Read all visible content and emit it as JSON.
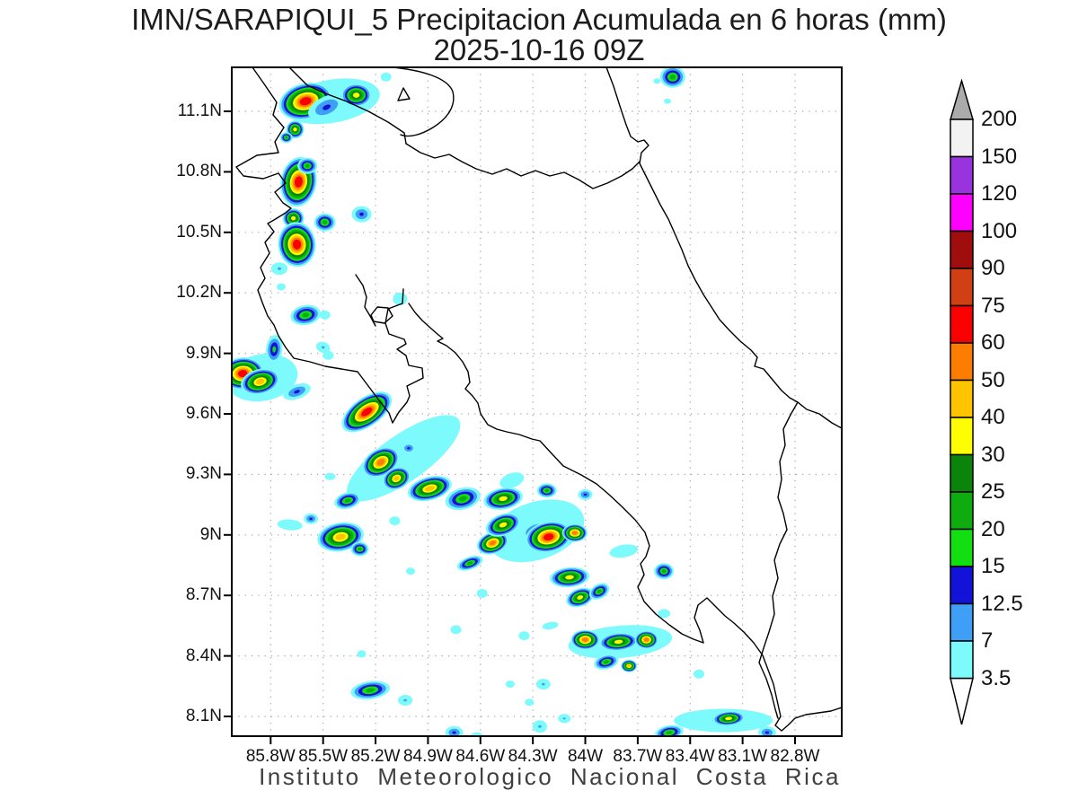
{
  "title": {
    "line1": "IMN/SARAPIQUI_5 Precipitacion Acumulada en 6 horas (mm)",
    "line2": "2025-10-16 09Z"
  },
  "footer": "Instituto Meteorologico Nacional Costa Rica",
  "chart_data": {
    "type": "heatmap",
    "title": "IMN/SARAPIQUI_5 Precipitacion Acumulada en 6 horas (mm)",
    "subtitle": "2025-10-16 09Z",
    "xlabel": "",
    "ylabel": "",
    "units": "mm",
    "grid": true,
    "legend_position": "right",
    "xlim": [
      -86.02,
      -82.53
    ],
    "ylim": [
      7.99,
      11.32
    ],
    "x_tick_labels": [
      "85.8W",
      "85.5W",
      "85.2W",
      "84.9W",
      "84.6W",
      "84.3W",
      "84W",
      "83.7W",
      "83.4W",
      "83.1W",
      "82.8W"
    ],
    "x_tick_lons": [
      -85.8,
      -85.5,
      -85.2,
      -84.9,
      -84.6,
      -84.3,
      -84.0,
      -83.7,
      -83.4,
      -83.1,
      -82.8
    ],
    "y_tick_labels": [
      "11.1N",
      "10.8N",
      "10.5N",
      "10.2N",
      "9.9N",
      "9.6N",
      "9.3N",
      "9N",
      "8.7N",
      "8.4N",
      "8.1N"
    ],
    "y_tick_lats": [
      11.1,
      10.8,
      10.5,
      10.2,
      9.9,
      9.6,
      9.3,
      9.0,
      8.7,
      8.4,
      8.1
    ],
    "colorbar": {
      "thresholds": [
        3.5,
        7,
        12.5,
        15,
        20,
        25,
        30,
        40,
        50,
        60,
        75,
        90,
        100,
        120,
        150,
        200
      ],
      "labels_top_to_bottom": [
        "200",
        "150",
        "120",
        "100",
        "90",
        "75",
        "60",
        "50",
        "40",
        "30",
        "25",
        "20",
        "15",
        "12.5",
        "7",
        "3.5"
      ],
      "colors_bottom_to_top": [
        "#7CFAFC",
        "#3F9EF5",
        "#1212D9",
        "#12DF12",
        "#0FAC0F",
        "#0A840A",
        "#FEFE00",
        "#FFC400",
        "#FD7D00",
        "#FB0000",
        "#D04012",
        "#A00D0D",
        "#FE01FE",
        "#9933DD",
        "#F2F2F2"
      ],
      "over_color": "#ABABAB",
      "under_color": "#FFFFFF"
    },
    "cell_levels_mm": [
      3.5,
      7,
      12.5,
      15,
      20,
      25,
      30,
      40,
      50,
      60
    ],
    "cells_format": [
      "lon",
      "lat",
      "peak_mm",
      "rx_px",
      "ry_px",
      "rot_deg"
    ],
    "cells": [
      [
        -85.45,
        11.15,
        7,
        54,
        24,
        -10
      ],
      [
        -85.6,
        11.15,
        60,
        30,
        20,
        -15
      ],
      [
        -85.48,
        11.12,
        12.5,
        22,
        12,
        -25
      ],
      [
        -85.31,
        11.18,
        30,
        17,
        13,
        0
      ],
      [
        -85.14,
        11.27,
        3.5,
        6,
        5,
        0
      ],
      [
        -85.66,
        11.01,
        30,
        10,
        10,
        0
      ],
      [
        -85.71,
        10.97,
        20,
        7,
        6,
        0
      ],
      [
        -83.5,
        11.27,
        20,
        14,
        12,
        0
      ],
      [
        -83.59,
        11.25,
        3.5,
        4,
        3,
        0
      ],
      [
        -83.53,
        11.15,
        3.5,
        4,
        3,
        0
      ],
      [
        -85.64,
        10.75,
        60,
        20,
        28,
        10
      ],
      [
        -85.59,
        10.83,
        20,
        11,
        9,
        0
      ],
      [
        -85.67,
        10.57,
        30,
        12,
        11,
        0
      ],
      [
        -85.49,
        10.55,
        20,
        12,
        10,
        0
      ],
      [
        -85.28,
        10.59,
        12.5,
        11,
        9,
        0
      ],
      [
        -85.65,
        10.44,
        60,
        21,
        25,
        -5
      ],
      [
        -85.75,
        10.32,
        7,
        9,
        7,
        0
      ],
      [
        -85.74,
        10.23,
        3.5,
        5,
        4,
        0
      ],
      [
        -85.6,
        10.09,
        20,
        17,
        11,
        -10
      ],
      [
        -85.49,
        10.09,
        3.5,
        6,
        5,
        0
      ],
      [
        -85.5,
        9.93,
        7,
        8,
        6,
        20
      ],
      [
        -85.47,
        9.89,
        3.5,
        6,
        5,
        0
      ],
      [
        -85.06,
        10.17,
        3.5,
        8,
        7,
        0
      ],
      [
        -85.85,
        9.78,
        7,
        40,
        26,
        -10
      ],
      [
        -85.96,
        9.8,
        60,
        24,
        18,
        -5
      ],
      [
        -85.86,
        9.76,
        40,
        22,
        14,
        -15
      ],
      [
        -85.78,
        9.92,
        15,
        9,
        16,
        5
      ],
      [
        -85.65,
        9.71,
        12.5,
        16,
        8,
        -20
      ],
      [
        -85.04,
        9.38,
        3.5,
        75,
        26,
        -35
      ],
      [
        -85.25,
        9.61,
        60,
        32,
        16,
        -35
      ],
      [
        -85.01,
        9.43,
        12.5,
        8,
        6,
        0
      ],
      [
        -85.17,
        9.36,
        50,
        22,
        15,
        -30
      ],
      [
        -85.08,
        9.28,
        40,
        16,
        12,
        -25
      ],
      [
        -84.89,
        9.23,
        40,
        25,
        13,
        -15
      ],
      [
        -84.7,
        9.18,
        20,
        20,
        12,
        -15
      ],
      [
        -84.47,
        9.18,
        30,
        22,
        12,
        -10
      ],
      [
        -84.42,
        9.27,
        3.5,
        14,
        8,
        -20
      ],
      [
        -85.36,
        9.17,
        20,
        15,
        9,
        -15
      ],
      [
        -85.57,
        9.08,
        12.5,
        8,
        6,
        0
      ],
      [
        -85.69,
        9.05,
        3.5,
        14,
        6,
        5
      ],
      [
        -85.4,
        8.99,
        40,
        26,
        16,
        -10
      ],
      [
        -85.29,
        8.93,
        20,
        10,
        8,
        0
      ],
      [
        -85.09,
        9.07,
        3.5,
        6,
        5,
        0
      ],
      [
        -85.0,
        8.82,
        3.5,
        5,
        4,
        0
      ],
      [
        -85.46,
        9.29,
        3.5,
        6,
        4,
        0
      ],
      [
        -84.28,
        9.02,
        7,
        55,
        32,
        -18
      ],
      [
        -84.22,
        9.22,
        20,
        11,
        8,
        0
      ],
      [
        -84.0,
        9.2,
        12.5,
        8,
        6,
        0
      ],
      [
        -84.53,
        8.96,
        50,
        18,
        12,
        -20
      ],
      [
        -84.47,
        9.05,
        30,
        20,
        12,
        -20
      ],
      [
        -84.21,
        8.99,
        60,
        26,
        17,
        -12
      ],
      [
        -84.06,
        9.01,
        50,
        14,
        10,
        0
      ],
      [
        -84.09,
        8.79,
        30,
        22,
        11,
        -5
      ],
      [
        -84.03,
        8.69,
        30,
        16,
        10,
        -20
      ],
      [
        -83.92,
        8.72,
        20,
        12,
        8,
        -30
      ],
      [
        -83.78,
        8.92,
        3.5,
        16,
        7,
        -10
      ],
      [
        -83.55,
        8.82,
        20,
        11,
        9,
        0
      ],
      [
        -84.66,
        8.86,
        20,
        15,
        7,
        -20
      ],
      [
        -84.59,
        8.71,
        3.5,
        6,
        5,
        0
      ],
      [
        -84.2,
        8.55,
        3.5,
        9,
        4,
        -10
      ],
      [
        -84.35,
        8.5,
        3.5,
        6,
        5,
        0
      ],
      [
        -83.8,
        8.47,
        7,
        58,
        18,
        -5
      ],
      [
        -84.0,
        8.48,
        50,
        16,
        11,
        0
      ],
      [
        -83.81,
        8.47,
        30,
        22,
        10,
        -5
      ],
      [
        -83.65,
        8.48,
        50,
        13,
        10,
        0
      ],
      [
        -83.88,
        8.37,
        20,
        14,
        8,
        -15
      ],
      [
        -83.75,
        8.35,
        40,
        9,
        7,
        0
      ],
      [
        -83.35,
        8.31,
        3.5,
        6,
        5,
        0
      ],
      [
        -83.55,
        8.61,
        3.5,
        7,
        5,
        0
      ],
      [
        -84.74,
        8.53,
        3.5,
        6,
        5,
        0
      ],
      [
        -83.21,
        8.08,
        7,
        55,
        13,
        0
      ],
      [
        -83.18,
        8.09,
        30,
        18,
        8,
        -5
      ],
      [
        -83.52,
        8.02,
        20,
        16,
        8,
        -10
      ],
      [
        -82.96,
        8.02,
        12.5,
        10,
        7,
        0
      ],
      [
        -84.12,
        8.09,
        7,
        7,
        5,
        0
      ],
      [
        -84.26,
        8.05,
        7,
        8,
        7,
        0
      ],
      [
        -85.23,
        8.23,
        20,
        22,
        10,
        -8
      ],
      [
        -85.03,
        8.18,
        7,
        8,
        6,
        0
      ],
      [
        -85.28,
        8.41,
        3.5,
        5,
        4,
        0
      ],
      [
        -84.43,
        8.26,
        3.5,
        5,
        4,
        0
      ],
      [
        -84.24,
        8.26,
        7,
        8,
        6,
        0
      ],
      [
        -84.32,
        8.17,
        3.5,
        5,
        4,
        0
      ],
      [
        -84.75,
        8.02,
        12.5,
        10,
        7,
        0
      ],
      [
        -84.62,
        8.0,
        3.5,
        7,
        5,
        0
      ]
    ]
  },
  "map_outline": {
    "stroke": "#000000",
    "paths": [
      "M 281,75 L 293,92 L 308,114 L 304,128 L 316,142 L 306,158 L 310,170 L 286,173 L 263,186 L 271,196 L 293,199 L 310,193 L 318,204 L 306,214 L 315,226 L 324,232 L 318,237 L 305,245 L 298,249 L 305,258 L 295,270 L 300,282 L 290,298 L 295,310 L 287,323 L 292,337 L 298,352 L 305,362 L 310,374 L 318,387 L 327,399 L 345,403 L 362,408 L 380,411 L 398,414 L 410,430 L 422,446 L 433,460 L 437,471 L 444,459 L 453,448 L 456,441 L 453,430 L 471,421 L 470,410 L 455,407 L 452,396 L 442,389 L 452,383 L 450,378 L 433,372 L 429,360 L 432,344 L 448,338 L 449,322",
      "M 396,306 L 404,318 L 408,331 L 406,342 L 412,352 L 418,363",
      "M 455,338 L 462,348 L 470,357 L 480,366 L 488,373 L 493,377 L 487,380 L 497,385 L 507,393 L 515,403 L 521,414 L 523,426 L 518,433 L 526,441 L 532,449 L 535,461 L 543,473 L 553,478 L 564,481 L 578,484 L 592,489 L 601,491 L 613,504 L 627,519 L 647,529 L 664,539 L 677,550 L 692,564 L 707,579 L 718,593 L 723,608 L 719,620 L 713,628 L 717,640 L 710,654 L 717,670 L 730,684 L 745,696 L 759,706 L 772,712 L 783,716 L 779,702 L 773,688 L 777,674 L 787,666 L 797,676 L 807,686 L 817,694 L 828,704 L 839,716 L 849,730 L 855,746 L 861,762 L 865,780 L 869,798 L 863,808 L 870,814 L 877,808 L 885,800 L 897,796 L 911,794 L 925,792 L 937,788",
      "M 675,75 L 683,96 L 690,118 L 697,139 L 702,152 L 710,158 L 717,156 L 722,162 L 714,170 L 712,182 L 719,196 L 727,212 L 735,228 L 744,244 L 752,262 L 759,278 L 766,296 L 774,312 L 783,328 L 792,342 L 801,356 L 812,368 L 824,380 L 836,390 L 843,398 L 840,408 L 850,411 L 860,423 L 870,435 L 879,443 L 888,448 L 898,456 L 912,461 L 926,471 L 937,477",
      "M 888,448 L 880,462 L 872,478 L 874,496 L 868,514 L 870,534 L 866,554 L 872,572 L 876,590 L 868,606 L 862,624 L 866,644 L 860,664 L 862,684 L 856,704 L 850,722 L 845,738 L 853,756 L 859,774 L 863,790 L 866,800",
      "M 322,75 L 342,95 L 362,104 L 386,113 L 410,124 L 432,136 L 450,148 L 452,160",
      "M 437,75 C 468,78 498,86 504,102 C 508,118 498,132 482,142 C 469,150 455,154 446,150",
      "M 452,160 L 468,170 L 484,176 L 500,172 L 514,180 L 530,188 L 548,194 L 564,188 L 580,196 L 596,190 L 612,196 L 628,192 L 644,200 L 660,210 L 676,204 L 692,196 L 704,188 L 712,180",
      "M 443,112 L 449,98 L 456,110 Z",
      "M 413,351 L 420,342 L 432,343 L 437,352 L 428,360 L 416,358 Z"
    ]
  }
}
